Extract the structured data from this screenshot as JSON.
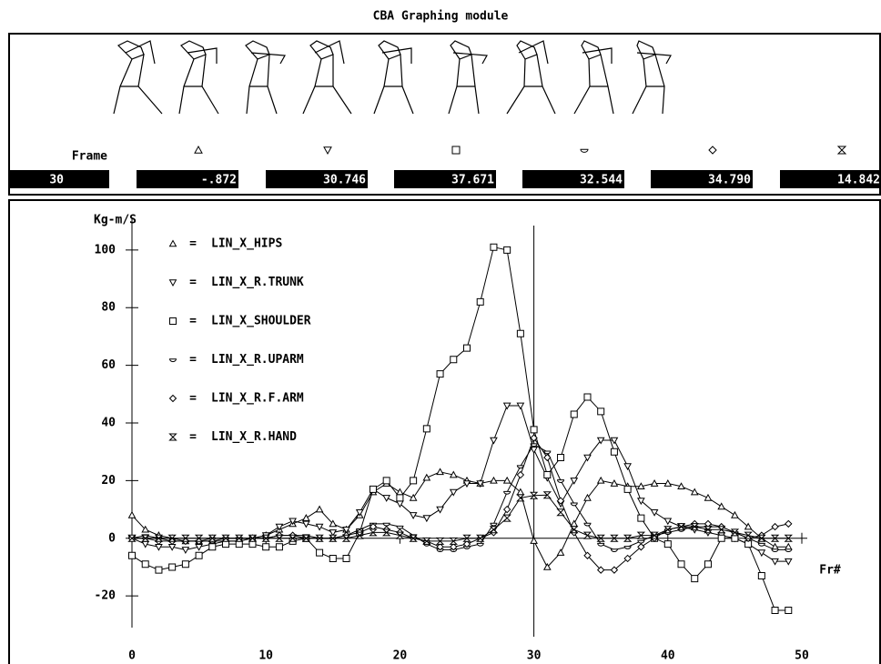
{
  "title": "CBA Graphing module",
  "frame_panel": {
    "label": "Frame",
    "frame": 30,
    "readouts": [
      "-.872",
      "30.746",
      "37.671",
      "32.544",
      "34.790",
      "14.842"
    ]
  },
  "chart_data": {
    "type": "line",
    "y_label": "Kg-m/S",
    "x_label": "Fr#",
    "legend_separator": "=",
    "x": [
      0,
      1,
      2,
      3,
      4,
      5,
      6,
      7,
      8,
      9,
      10,
      11,
      12,
      13,
      14,
      15,
      16,
      17,
      18,
      19,
      20,
      21,
      22,
      23,
      24,
      25,
      26,
      27,
      28,
      29,
      30,
      31,
      32,
      33,
      34,
      35,
      36,
      37,
      38,
      39,
      40,
      41,
      42,
      43,
      44,
      45,
      46,
      47,
      48,
      49
    ],
    "xlim": [
      0,
      50
    ],
    "xticks": [
      0,
      10,
      20,
      30,
      40,
      50
    ],
    "ylim": [
      -31,
      111
    ],
    "yticks": [
      -20,
      0,
      20,
      40,
      60,
      80,
      100
    ],
    "series": [
      {
        "name": "LIN_X_HIPS",
        "marker": "triangle-up",
        "color": "#000000",
        "values": [
          8,
          3,
          1,
          0,
          -1,
          -1,
          -1,
          -1,
          -1,
          0,
          1,
          3,
          5,
          7,
          10,
          5,
          3,
          8,
          16,
          19,
          16,
          14,
          21,
          23,
          22,
          20,
          19,
          20,
          20,
          16,
          -0.872,
          -10,
          -5,
          5,
          14,
          20,
          19,
          18,
          18,
          19,
          19,
          18,
          16,
          14,
          11,
          8,
          4,
          0,
          -3,
          -3
        ]
      },
      {
        "name": "LIN_X_R.TRUNK",
        "marker": "triangle-down",
        "color": "#000000",
        "values": [
          0,
          -2,
          -3,
          -3,
          -4,
          -3,
          -2,
          -1,
          -1,
          0,
          1,
          4,
          6,
          5,
          4,
          2,
          3,
          9,
          17,
          14,
          12,
          8,
          7,
          10,
          16,
          19,
          19,
          34,
          46,
          46,
          30.746,
          21,
          12,
          20,
          28,
          34,
          34,
          25,
          13,
          9,
          6,
          4,
          3,
          2,
          1,
          0,
          -2,
          -5,
          -8,
          -8
        ]
      },
      {
        "name": "LIN_X_SHOULDER",
        "marker": "square",
        "color": "#000000",
        "values": [
          -6,
          -9,
          -11,
          -10,
          -9,
          -6,
          -3,
          -2,
          -2,
          -2,
          -3,
          -3,
          -1,
          0,
          -5,
          -7,
          -7,
          2,
          17,
          20,
          14,
          20,
          38,
          57,
          62,
          66,
          82,
          101,
          100,
          71,
          37.671,
          22,
          28,
          43,
          49,
          44,
          30,
          17,
          7,
          0,
          -2,
          -9,
          -14,
          -9,
          0,
          0,
          -2,
          -13,
          -25,
          -25
        ]
      },
      {
        "name": "LIN_X_R.UPARM",
        "marker": "circle",
        "color": "#000000",
        "values": [
          0,
          1,
          0,
          -1,
          -1,
          -1,
          -1,
          0,
          0,
          0,
          0,
          1,
          1,
          1,
          0,
          0,
          1,
          3,
          5,
          5,
          4,
          1,
          -2,
          -4,
          -4,
          -3,
          -2,
          5,
          16,
          25,
          32.544,
          30,
          20,
          12,
          5,
          -2,
          -4,
          -3,
          -1,
          1,
          2,
          3,
          4,
          4,
          4,
          2,
          0,
          -2,
          -4,
          -4
        ]
      },
      {
        "name": "LIN_X_R.F.ARM",
        "marker": "diamond",
        "color": "#000000",
        "values": [
          0,
          0,
          -1,
          -1,
          -1,
          -1,
          0,
          0,
          0,
          0,
          0,
          1,
          1,
          0,
          0,
          0,
          1,
          2,
          4,
          3,
          2,
          0,
          -1,
          -3,
          -3,
          -2,
          0,
          2,
          10,
          22,
          34.79,
          28,
          13,
          2,
          -6,
          -11,
          -11,
          -7,
          -3,
          0,
          3,
          4,
          5,
          5,
          4,
          2,
          0,
          1,
          4,
          5
        ]
      },
      {
        "name": "LIN_X_R.HAND",
        "marker": "hourglass",
        "color": "#000000",
        "values": [
          0,
          0,
          0,
          0,
          0,
          0,
          0,
          0,
          0,
          0,
          0,
          0,
          0,
          0,
          0,
          0,
          0,
          1,
          2,
          2,
          1,
          0,
          -1,
          -1,
          -1,
          0,
          0,
          3,
          7,
          14,
          14.842,
          15,
          9,
          3,
          1,
          0,
          0,
          0,
          1,
          1,
          3,
          4,
          4,
          3,
          3,
          2,
          1,
          0,
          0,
          0
        ]
      }
    ]
  }
}
